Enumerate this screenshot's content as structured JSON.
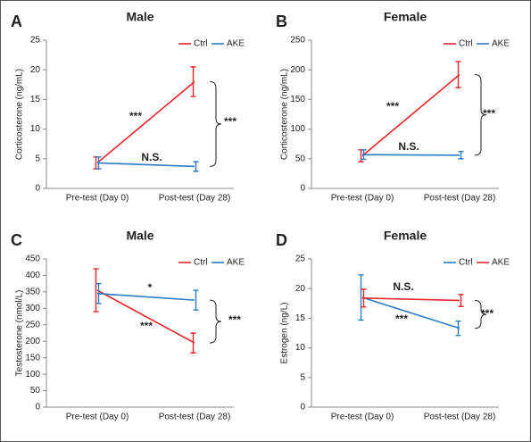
{
  "chart_data": [
    {
      "type": "line",
      "panel": "A",
      "title": "Male",
      "ylabel": "Corticosterone (ng/mL)",
      "categories": [
        "Pre-test (Day 0)",
        "Post-test (Day 28)"
      ],
      "series": [
        {
          "name": "Ctrl",
          "color": "#e3262b",
          "values": [
            4.3,
            18.0
          ],
          "errors": [
            1.0,
            2.5
          ]
        },
        {
          "name": "AKE",
          "color": "#2a7bc4",
          "values": [
            4.3,
            3.7
          ],
          "errors": [
            1.0,
            0.8
          ]
        }
      ],
      "ylim": [
        0,
        25
      ],
      "yticks": [
        0,
        5,
        10,
        15,
        20,
        25
      ],
      "annotations": [
        "***",
        "N.S.",
        "***"
      ]
    },
    {
      "type": "line",
      "panel": "B",
      "title": "Female",
      "ylabel": "Corticosterone (ng/mL)",
      "categories": [
        "Pre-test (Day 0)",
        "Post-test (Day 28)"
      ],
      "series": [
        {
          "name": "Ctrl",
          "color": "#e3262b",
          "values": [
            55,
            192
          ],
          "errors": [
            10,
            22
          ]
        },
        {
          "name": "AKE",
          "color": "#2a7bc4",
          "values": [
            57,
            56
          ],
          "errors": [
            8,
            6
          ]
        }
      ],
      "ylim": [
        0,
        250
      ],
      "yticks": [
        0,
        50,
        100,
        150,
        200,
        250
      ],
      "annotations": [
        "***",
        "N.S.",
        "***"
      ]
    },
    {
      "type": "line",
      "panel": "C",
      "title": "Male",
      "ylabel": "Testosterone (nmol/L)",
      "categories": [
        "Pre-test (Day 0)",
        "Post-test (Day 28)"
      ],
      "series": [
        {
          "name": "Ctrl",
          "color": "#e3262b",
          "values": [
            355,
            195
          ],
          "errors": [
            65,
            30
          ]
        },
        {
          "name": "AKE",
          "color": "#2a7bc4",
          "values": [
            345,
            325
          ],
          "errors": [
            30,
            30
          ]
        }
      ],
      "ylim": [
        0,
        450
      ],
      "yticks": [
        0,
        50,
        100,
        150,
        200,
        250,
        300,
        350,
        400,
        450
      ],
      "annotations": [
        "***",
        "*",
        "***"
      ]
    },
    {
      "type": "line",
      "panel": "D",
      "title": "Female",
      "ylabel": "Estrogen (ng/L)",
      "categories": [
        "Pre-test (Day 0)",
        "Post-test (Day 28)"
      ],
      "series": [
        {
          "name": "Ctrl",
          "color": "#2a7bc4",
          "values": [
            18.5,
            13.3
          ],
          "errors": [
            3.8,
            1.2
          ]
        },
        {
          "name": "AKE",
          "color": "#e3262b",
          "values": [
            18.4,
            18.0
          ],
          "errors": [
            1.5,
            1.0
          ]
        }
      ],
      "ylim": [
        0,
        25
      ],
      "yticks": [
        0,
        5,
        10,
        15,
        20,
        25
      ],
      "annotations": [
        "***",
        "N.S.",
        "***"
      ]
    }
  ]
}
